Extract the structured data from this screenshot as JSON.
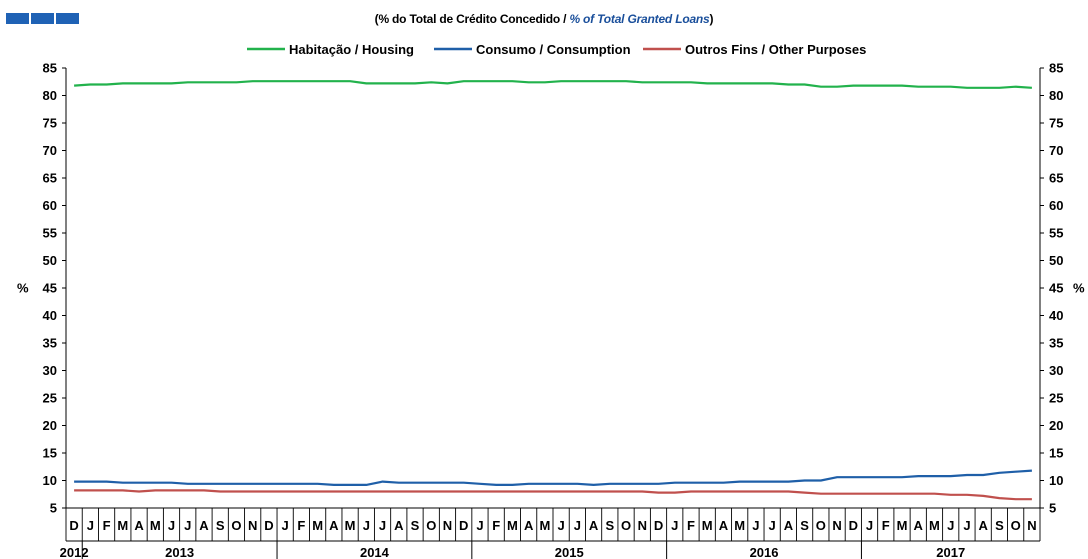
{
  "header": {
    "subtitle_prefix": "(% do Total de Crédito Concedido  / ",
    "subtitle_en": "% of  Total Granted Loans",
    "subtitle_suffix": ")"
  },
  "logo": {
    "icon": "bank-logo-bars"
  },
  "chart_data": {
    "type": "line",
    "ylabel_left": "%",
    "ylabel_right": "%",
    "ylim": [
      5,
      85
    ],
    "yticks": [
      5,
      10,
      15,
      20,
      25,
      30,
      35,
      40,
      45,
      50,
      55,
      60,
      65,
      70,
      75,
      80,
      85
    ],
    "grid": false,
    "legend_position": "top-center",
    "months": [
      "D",
      "J",
      "F",
      "M",
      "A",
      "M",
      "J",
      "J",
      "A",
      "S",
      "O",
      "N",
      "D",
      "J",
      "F",
      "M",
      "A",
      "M",
      "J",
      "J",
      "A",
      "S",
      "O",
      "N",
      "D",
      "J",
      "F",
      "M",
      "A",
      "M",
      "J",
      "J",
      "A",
      "S",
      "O",
      "N",
      "D",
      "J",
      "F",
      "M",
      "A",
      "M",
      "J",
      "J",
      "A",
      "S",
      "O",
      "N",
      "D",
      "J",
      "F",
      "M",
      "A",
      "M",
      "J",
      "J",
      "A",
      "S",
      "O",
      "N"
    ],
    "years": [
      {
        "label": "2012",
        "start": 0,
        "end": 0
      },
      {
        "label": "2013",
        "start": 1,
        "end": 12
      },
      {
        "label": "2014",
        "start": 13,
        "end": 24
      },
      {
        "label": "2015",
        "start": 25,
        "end": 36
      },
      {
        "label": "2016",
        "start": 37,
        "end": 48
      },
      {
        "label": "2017",
        "start": 49,
        "end": 59
      }
    ],
    "series": [
      {
        "name": "Habitação / Housing",
        "color": "#22b24c",
        "values": [
          81.8,
          82.0,
          82.0,
          82.2,
          82.2,
          82.2,
          82.2,
          82.4,
          82.4,
          82.4,
          82.4,
          82.6,
          82.6,
          82.6,
          82.6,
          82.6,
          82.6,
          82.6,
          82.2,
          82.2,
          82.2,
          82.2,
          82.4,
          82.2,
          82.6,
          82.6,
          82.6,
          82.6,
          82.4,
          82.4,
          82.6,
          82.6,
          82.6,
          82.6,
          82.6,
          82.4,
          82.4,
          82.4,
          82.4,
          82.2,
          82.2,
          82.2,
          82.2,
          82.2,
          82.0,
          82.0,
          81.6,
          81.6,
          81.8,
          81.8,
          81.8,
          81.8,
          81.6,
          81.6,
          81.6,
          81.4,
          81.4,
          81.4,
          81.6,
          81.4
        ]
      },
      {
        "name": "Consumo / Consumption",
        "color": "#1f5fa8",
        "values": [
          9.8,
          9.8,
          9.8,
          9.6,
          9.6,
          9.6,
          9.6,
          9.4,
          9.4,
          9.4,
          9.4,
          9.4,
          9.4,
          9.4,
          9.4,
          9.4,
          9.2,
          9.2,
          9.2,
          9.8,
          9.6,
          9.6,
          9.6,
          9.6,
          9.6,
          9.4,
          9.2,
          9.2,
          9.4,
          9.4,
          9.4,
          9.4,
          9.2,
          9.4,
          9.4,
          9.4,
          9.4,
          9.6,
          9.6,
          9.6,
          9.6,
          9.8,
          9.8,
          9.8,
          9.8,
          10.0,
          10.0,
          10.6,
          10.6,
          10.6,
          10.6,
          10.6,
          10.8,
          10.8,
          10.8,
          11.0,
          11.0,
          11.4,
          11.6,
          11.8
        ]
      },
      {
        "name": "Outros Fins / Other Purposes",
        "color": "#c0504d",
        "values": [
          8.2,
          8.2,
          8.2,
          8.2,
          8.0,
          8.2,
          8.2,
          8.2,
          8.2,
          8.0,
          8.0,
          8.0,
          8.0,
          8.0,
          8.0,
          8.0,
          8.0,
          8.0,
          8.0,
          8.0,
          8.0,
          8.0,
          8.0,
          8.0,
          8.0,
          8.0,
          8.0,
          8.0,
          8.0,
          8.0,
          8.0,
          8.0,
          8.0,
          8.0,
          8.0,
          8.0,
          7.8,
          7.8,
          8.0,
          8.0,
          8.0,
          8.0,
          8.0,
          8.0,
          8.0,
          7.8,
          7.6,
          7.6,
          7.6,
          7.6,
          7.6,
          7.6,
          7.6,
          7.6,
          7.4,
          7.4,
          7.2,
          6.8,
          6.6,
          6.6
        ]
      }
    ]
  }
}
